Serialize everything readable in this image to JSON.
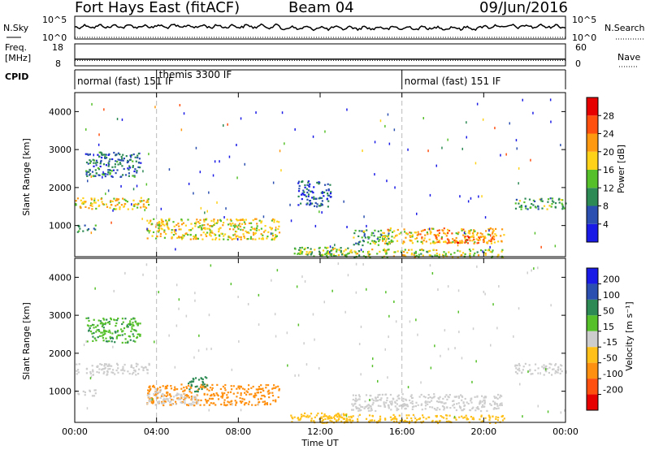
{
  "header": {
    "station": "Fort Hays East (fitACF)",
    "beam": "Beam 04",
    "date": "09/Jun/2016"
  },
  "chart_data": [
    {
      "type": "line",
      "name": "nsky-nsearch-panel",
      "left_label": "N.Sky",
      "right_label": "N.Search",
      "left_ticks": [
        "10^5",
        "10^0"
      ],
      "right_ticks": [
        "10^5",
        "10^0"
      ]
    },
    {
      "type": "line",
      "name": "freq-nave-panel",
      "left_label_line1": "Freq.",
      "left_label_line2": "[MHz]",
      "right_label": "Nave",
      "left_ticks": [
        "18",
        "8"
      ],
      "right_ticks": [
        "60",
        "0"
      ],
      "freq_level": 11,
      "freq_range": [
        8,
        18
      ]
    },
    {
      "type": "table",
      "name": "cpid-panel",
      "label": "CPID",
      "modes": [
        {
          "start": 0,
          "end": 4,
          "text": "normal (fast) 151 IF"
        },
        {
          "start": 4,
          "end": 16,
          "text": "themis 3300 IF"
        },
        {
          "start": 16,
          "end": 24,
          "text": "normal (fast) 151 IF"
        }
      ]
    },
    {
      "type": "heatmap",
      "name": "power-panel",
      "ylabel": "Slant Range [km]",
      "ylim": [
        180,
        4500
      ],
      "yticks": [
        1000,
        2000,
        3000,
        4000
      ],
      "colorbar_label": "Power [dB]",
      "colorbar_ticks": [
        4,
        8,
        12,
        16,
        20,
        24,
        28
      ],
      "colorbar_range": [
        0,
        32
      ],
      "colors": [
        "#1a1ae6",
        "#2b4fb0",
        "#2e8a55",
        "#55c02a",
        "#ffd21a",
        "#ff9a10",
        "#ff5010",
        "#e60000"
      ],
      "echo_regions": [
        {
          "t0": 0.0,
          "t1": 3.6,
          "r0": 1450,
          "r1": 1750,
          "level": 19
        },
        {
          "t0": 0.5,
          "t1": 3.2,
          "r0": 2300,
          "r1": 2950,
          "level": 8
        },
        {
          "t0": 0.0,
          "t1": 1.0,
          "r0": 850,
          "r1": 1050,
          "level": 10
        },
        {
          "t0": 3.5,
          "t1": 10.0,
          "r0": 650,
          "r1": 1200,
          "level": 18
        },
        {
          "t0": 10.5,
          "t1": 13.5,
          "r0": 200,
          "r1": 450,
          "level": 14
        },
        {
          "t0": 13.5,
          "t1": 15.5,
          "r0": 500,
          "r1": 900,
          "level": 12
        },
        {
          "t0": 15.0,
          "t1": 21.0,
          "r0": 550,
          "r1": 950,
          "level": 20
        },
        {
          "t0": 17.5,
          "t1": 20.5,
          "r0": 550,
          "r1": 750,
          "level": 24
        },
        {
          "t0": 12.0,
          "t1": 21.0,
          "r0": 180,
          "r1": 400,
          "level": 16
        },
        {
          "t0": 21.5,
          "t1": 24.0,
          "r0": 1450,
          "r1": 1750,
          "level": 12
        },
        {
          "t0": 10.8,
          "t1": 12.5,
          "r0": 1500,
          "r1": 2200,
          "level": 6
        }
      ]
    },
    {
      "type": "heatmap",
      "name": "velocity-panel",
      "ylabel": "Slant Range [km]",
      "ylim": [
        180,
        4500
      ],
      "yticks": [
        1000,
        2000,
        3000,
        4000
      ],
      "colorbar_label": "Velocity [m s⁻¹]",
      "colorbar_ticks": [
        "200",
        "100",
        "50",
        "15",
        "-15",
        "-50",
        "-100",
        "-200"
      ],
      "colors": [
        "#1a1ae6",
        "#2b4fb0",
        "#2e8a55",
        "#55c02a",
        "#cdcdcd",
        "#ffc01a",
        "#ff9010",
        "#ff5010",
        "#e60000"
      ],
      "echo_regions": [
        {
          "t0": 0.0,
          "t1": 3.6,
          "r0": 1450,
          "r1": 1750,
          "level": 0
        },
        {
          "t0": 0.5,
          "t1": 3.2,
          "r0": 2300,
          "r1": 2950,
          "level": 30
        },
        {
          "t0": 0.0,
          "t1": 1.0,
          "r0": 850,
          "r1": 1050,
          "level": 0
        },
        {
          "t0": 3.5,
          "t1": 10.0,
          "r0": 650,
          "r1": 1200,
          "level": -60
        },
        {
          "t0": 3.5,
          "t1": 6.0,
          "r0": 650,
          "r1": 1000,
          "level": 0
        },
        {
          "t0": 10.5,
          "t1": 13.5,
          "r0": 200,
          "r1": 450,
          "level": -40
        },
        {
          "t0": 13.5,
          "t1": 21.0,
          "r0": 500,
          "r1": 950,
          "level": 0
        },
        {
          "t0": 12.0,
          "t1": 21.0,
          "r0": 180,
          "r1": 400,
          "level": -30
        },
        {
          "t0": 21.5,
          "t1": 24.0,
          "r0": 1450,
          "r1": 1750,
          "level": 0
        },
        {
          "t0": 5.5,
          "t1": 6.5,
          "r0": 1000,
          "r1": 1400,
          "level": 60
        }
      ]
    }
  ],
  "time_axis": {
    "label": "Time UT",
    "ticks": [
      "00:00",
      "04:00",
      "08:00",
      "12:00",
      "16:00",
      "20:00",
      "00:00"
    ],
    "range_hours": [
      0,
      24
    ]
  }
}
